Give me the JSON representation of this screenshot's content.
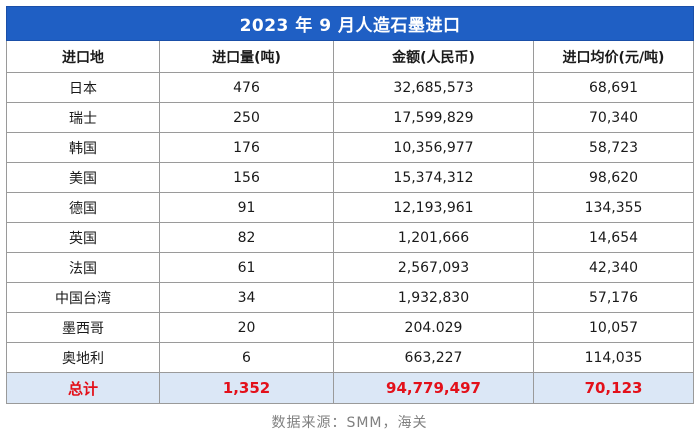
{
  "table": {
    "title": "2023 年 9 月人造石墨进口",
    "headers": [
      "进口地",
      "进口量(吨)",
      "金额(人民币)",
      "进口均价(元/吨)"
    ],
    "rows": [
      [
        "日本",
        "476",
        "32,685,573",
        "68,691"
      ],
      [
        "瑞士",
        "250",
        "17,599,829",
        "70,340"
      ],
      [
        "韩国",
        "176",
        "10,356,977",
        "58,723"
      ],
      [
        "美国",
        "156",
        "15,374,312",
        "98,620"
      ],
      [
        "德国",
        "91",
        "12,193,961",
        "134,355"
      ],
      [
        "英国",
        "82",
        "1,201,666",
        "14,654"
      ],
      [
        "法国",
        "61",
        "2,567,093",
        "42,340"
      ],
      [
        "中国台湾",
        "34",
        "1,932,830",
        "57,176"
      ],
      [
        "墨西哥",
        "20",
        "204.029",
        "10,057"
      ],
      [
        "奥地利",
        "6",
        "663,227",
        "114,035"
      ]
    ],
    "total": [
      "总计",
      "1,352",
      "94,779,497",
      "70,123"
    ]
  },
  "source": "数据来源：SMM，海关",
  "colors": {
    "title_bg": "#1f5fc4",
    "total_bg": "#dbe7f6",
    "total_text": "#e3101a"
  }
}
